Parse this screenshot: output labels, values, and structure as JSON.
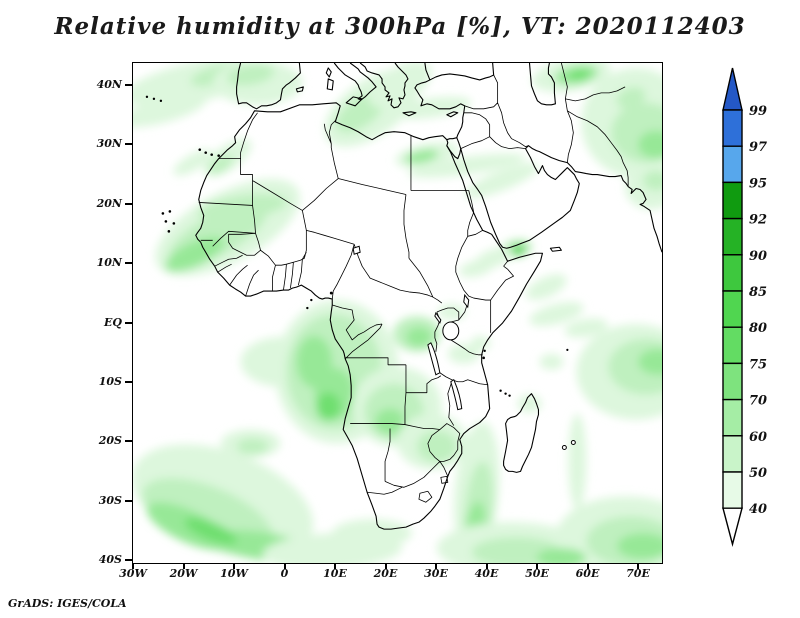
{
  "title": "Relative humidity at 300hPa [%], VT: 2020112403",
  "credit": "GrADS: IGES/COLA",
  "axes": {
    "lat": [
      "40N",
      "30N",
      "20N",
      "10N",
      "EQ",
      "10S",
      "20S",
      "30S",
      "40S"
    ],
    "lon": [
      "30W",
      "20W",
      "10W",
      "0",
      "10E",
      "20E",
      "30E",
      "40E",
      "50E",
      "60E",
      "70E"
    ]
  },
  "colorbar": {
    "labels": [
      "99",
      "97",
      "95",
      "92",
      "90",
      "85",
      "80",
      "75",
      "70",
      "60",
      "50",
      "40"
    ],
    "over_arrow_color": "#2458c6",
    "under_arrow_color": "#ffffff",
    "segment_colors": [
      "#2e70d9",
      "#57a7ec",
      "#109b10",
      "#25b225",
      "#3ec83e",
      "#50d650",
      "#63dc63",
      "#7ee37e",
      "#a5eda5",
      "#c9f4c9",
      "#e7fae7"
    ]
  },
  "chart_data": {
    "type": "heatmap",
    "title": "Relative humidity at 300hPa [%], VT: 2020112403",
    "variable": "Relative humidity",
    "level_hPa": 300,
    "units": "%",
    "valid_time_label": "VT: 2020112403",
    "x": {
      "label": "longitude",
      "ticks": [
        "30W",
        "20W",
        "10W",
        "0",
        "10E",
        "20E",
        "30E",
        "40E",
        "50E",
        "60E",
        "70E"
      ],
      "range_deg": [
        -30,
        75
      ]
    },
    "y": {
      "label": "latitude",
      "ticks": [
        "40N",
        "30N",
        "20N",
        "10N",
        "EQ",
        "10S",
        "20S",
        "30S",
        "40S"
      ],
      "range_deg": [
        -41,
        44
      ]
    },
    "shade_levels_percent": [
      40,
      50,
      60,
      70,
      75,
      80,
      85,
      90,
      92,
      95,
      97,
      99
    ],
    "palette_low_to_high": [
      "#ffffff",
      "#e7fae7",
      "#c9f4c9",
      "#a5eda5",
      "#7ee37e",
      "#63dc63",
      "#50d650",
      "#3ec83e",
      "#25b225",
      "#109b10",
      "#57a7ec",
      "#2e70d9",
      "#2458c6"
    ],
    "legend_position": "right",
    "grid": false,
    "high_humidity_regions": [
      "tropical Atlantic off Senegal/Mauritania (50-75)",
      "Gulf of Guinea, Gabon and Congo basin (50-80)",
      "central DR Congo (60-75)",
      "Angola-Zambia interior (50-70)",
      "south Atlantic crescent southwest of the Cape (50-70)",
      "Mozambique Channel and Zimbabwe/Mozambique (50-75)",
      "southwest Indian Ocean south and east of Madagascar (50-75)",
      "Gulf of Aden near the Horn of Africa (60-80)",
      "Iberia and central Mediterranean (40-60)",
      "Mediterranean coast of Egypt and Levant (50-70)",
      "Iran, Afghanistan and Pakistan (50-80)",
      "central Asia at northern edge (50-75)"
    ]
  }
}
